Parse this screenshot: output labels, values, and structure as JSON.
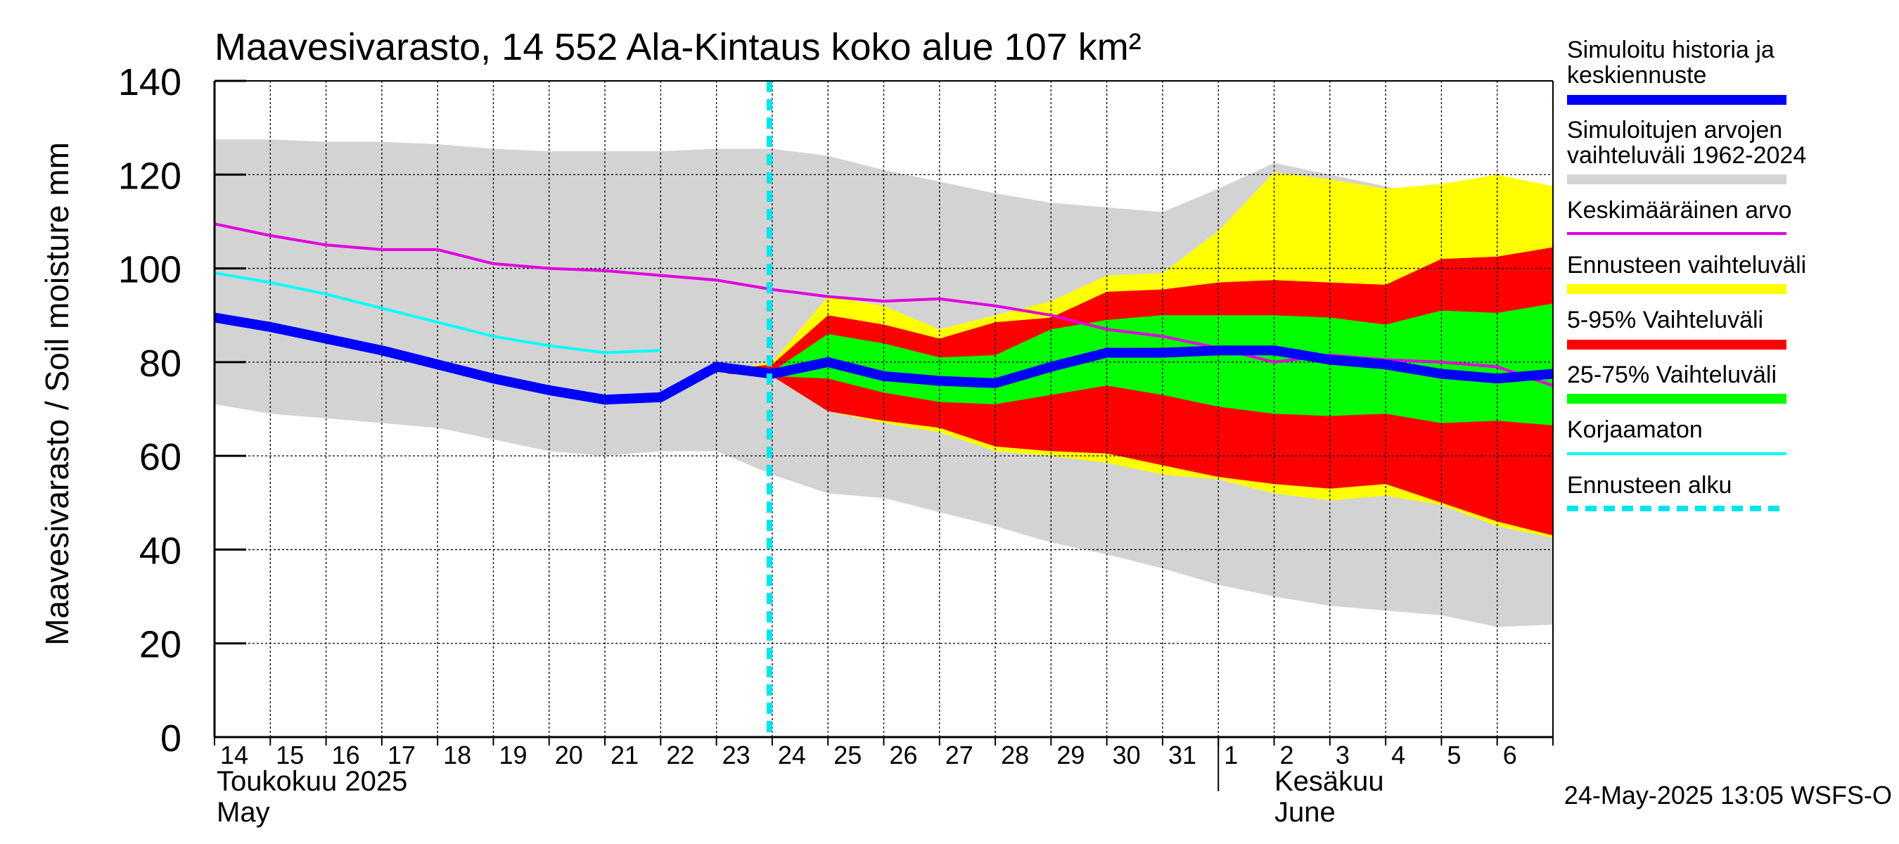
{
  "chart_data": {
    "type": "area",
    "title": "Maavesivarasto, 14 552 Ala-Kintaus koko alue 107 km²",
    "ylabel": "Maavesivarasto / Soil moisture   mm",
    "ylim": [
      0,
      140
    ],
    "yticks": [
      0,
      20,
      40,
      60,
      80,
      100,
      120,
      140
    ],
    "x_days": [
      "14",
      "15",
      "16",
      "17",
      "18",
      "19",
      "20",
      "21",
      "22",
      "23",
      "24",
      "25",
      "26",
      "27",
      "28",
      "29",
      "30",
      "31",
      "1",
      "2",
      "3",
      "4",
      "5",
      "6"
    ],
    "x_range": [
      0,
      24
    ],
    "month_labels": {
      "may_fi": "Toukokuu  2025",
      "may_en": "May",
      "june_fi": "Kesäkuu",
      "june_en": "June"
    },
    "forecast_start_x": 10,
    "footer": "24-May-2025 13:05 WSFS-O",
    "legend": [
      {
        "label": "Simuloitu historia ja keskiennuste",
        "color": "#0000ff",
        "style": "thick"
      },
      {
        "label": "Simuloitujen arvojen vaihteluväli 1962-2024",
        "color": "#d3d3d3",
        "style": "band"
      },
      {
        "label": "Keskimääräinen arvo",
        "color": "#e000e0",
        "style": "line"
      },
      {
        "label": "Ennusteen vaihteluväli",
        "color": "#ffff00",
        "style": "band"
      },
      {
        "label": "5-95% Vaihteluväli",
        "color": "#ff0000",
        "style": "band"
      },
      {
        "label": "25-75% Vaihteluväli",
        "color": "#00ff00",
        "style": "band"
      },
      {
        "label": "Korjaamaton",
        "color": "#00ffff",
        "style": "line"
      },
      {
        "label": "Ennusteen alku",
        "color": "#00e5ee",
        "style": "dashed"
      }
    ],
    "historical_range": {
      "x": [
        0,
        1,
        2,
        3,
        4,
        5,
        6,
        7,
        8,
        9,
        10,
        11,
        12,
        13,
        14,
        15,
        16,
        17,
        18,
        19,
        20,
        21,
        22,
        23,
        24
      ],
      "upper": [
        127.5,
        127.5,
        127,
        127,
        126.5,
        125.5,
        125,
        125,
        125,
        125.5,
        125.5,
        124,
        121,
        118.5,
        116,
        114,
        113,
        112,
        117,
        122.5,
        120,
        117.5,
        115,
        113,
        116
      ],
      "lower": [
        71,
        69,
        68,
        67,
        66,
        63.5,
        61,
        60,
        61,
        61,
        56,
        52,
        51,
        48,
        45,
        41.5,
        39,
        36,
        32.5,
        30,
        28,
        27,
        26,
        23.5,
        24
      ]
    },
    "forecast_range": {
      "x": [
        9.2,
        10,
        11,
        12,
        13,
        14,
        15,
        16,
        17,
        18,
        19,
        20,
        21,
        22,
        23,
        24
      ],
      "upper": [
        78.5,
        80,
        94,
        92,
        87,
        90,
        93,
        98.5,
        99,
        108,
        120.5,
        119,
        117,
        118,
        120,
        117.5
      ],
      "lower": [
        77.5,
        77,
        69.5,
        67,
        65,
        61,
        60,
        58.5,
        56,
        55,
        52,
        50.5,
        51.5,
        49.5,
        45,
        42.5
      ]
    },
    "p5_95": {
      "x": [
        9.2,
        10,
        11,
        12,
        13,
        14,
        15,
        16,
        17,
        18,
        19,
        20,
        21,
        22,
        23,
        24
      ],
      "upper": [
        78.5,
        79.5,
        90,
        88,
        85,
        88.5,
        89.5,
        95,
        95.5,
        97,
        97.5,
        97,
        96.5,
        102,
        102.5,
        104.5
      ],
      "lower": [
        77.5,
        77,
        69.5,
        67.5,
        66,
        62,
        61,
        60.5,
        58,
        55.5,
        54,
        53,
        54,
        50,
        46,
        43
      ]
    },
    "p25_75": {
      "x": [
        9.2,
        10,
        11,
        12,
        13,
        14,
        15,
        16,
        17,
        18,
        19,
        20,
        21,
        22,
        23,
        24
      ],
      "upper": [
        78.2,
        78,
        86,
        84,
        81,
        81.5,
        87,
        89,
        90,
        90,
        90,
        89.5,
        88,
        91,
        90.5,
        92.5
      ],
      "lower": [
        77.8,
        77,
        76.5,
        73.5,
        71.5,
        71,
        73,
        75,
        73,
        70.5,
        69,
        68.5,
        69,
        67,
        67.5,
        66.5
      ]
    },
    "simulated_mean": {
      "x": [
        0,
        1,
        2,
        3,
        4,
        5,
        6,
        7,
        8,
        9,
        10,
        11,
        12,
        13,
        14,
        15,
        16,
        17,
        18,
        19,
        20,
        21,
        22,
        23,
        24
      ],
      "y": [
        89.5,
        87.5,
        85,
        82.5,
        79.5,
        76.5,
        74,
        72,
        72.5,
        79,
        77.5,
        80,
        77,
        76,
        75.5,
        79,
        82,
        82,
        82.5,
        82.5,
        80.5,
        79.5,
        77.5,
        76.5,
        77.5
      ]
    },
    "average": {
      "x": [
        0,
        1,
        2,
        3,
        4,
        5,
        6,
        7,
        8,
        9,
        10,
        11,
        12,
        13,
        14,
        15,
        16,
        17,
        18,
        19,
        20,
        21,
        22,
        23,
        24
      ],
      "y": [
        109.5,
        107,
        105,
        104,
        104,
        101,
        100,
        99.5,
        98.5,
        97.5,
        95.5,
        94,
        93,
        93.5,
        92,
        90,
        87,
        85.5,
        83,
        80,
        81.5,
        80.5,
        80,
        79,
        75
      ]
    },
    "uncorrected": {
      "x": [
        0,
        1,
        2,
        3,
        4,
        5,
        6,
        7,
        8
      ],
      "y": [
        99,
        97,
        94.5,
        91.5,
        88.5,
        85.5,
        83.5,
        82,
        82.5
      ]
    }
  }
}
